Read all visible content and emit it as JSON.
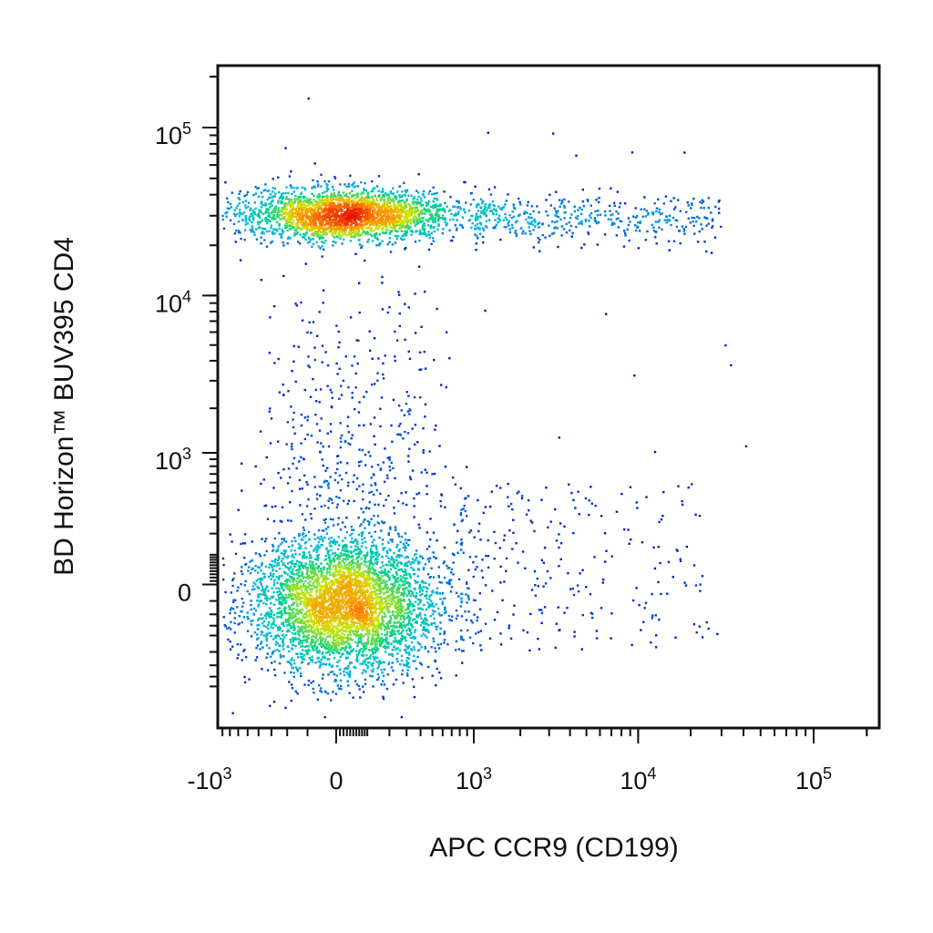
{
  "chart_data": {
    "type": "scatter",
    "title": "",
    "xlabel": "APC CCR9 (CD199)",
    "ylabel": "BD Horizon™ BUV395 CD4",
    "x_scale": "biexponential",
    "y_scale": "biexponential",
    "xlim": [
      -1800,
      150000
    ],
    "ylim": [
      -700,
      230000
    ],
    "grid": false,
    "legend": "none",
    "x_ticks": [
      {
        "value": -1000,
        "base": "-10",
        "exp": "3"
      },
      {
        "value": 0,
        "base": "0",
        "exp": ""
      },
      {
        "value": 1000,
        "base": "10",
        "exp": "3"
      },
      {
        "value": 10000,
        "base": "10",
        "exp": "4"
      },
      {
        "value": 100000,
        "base": "10",
        "exp": "5"
      }
    ],
    "y_ticks": [
      {
        "value": 100000,
        "base": "10",
        "exp": "5"
      },
      {
        "value": 10000,
        "base": "10",
        "exp": "4"
      },
      {
        "value": 1000,
        "base": "10",
        "exp": "3"
      },
      {
        "value": 0,
        "base": "0",
        "exp": ""
      }
    ],
    "density_colormap": [
      "#0000c8",
      "#00b4e6",
      "#00d28c",
      "#d2e600",
      "#ff8c00",
      "#e61400"
    ],
    "populations": [
      {
        "description": "CD4+ CCR9- cluster",
        "x_center": 50,
        "y_center": 32000,
        "count": 2600
      },
      {
        "description": "CD4- CCR9- cluster",
        "x_center": 20,
        "y_center": 60,
        "count": 4200
      },
      {
        "description": "CD4+ CCR9+ tail",
        "x_range": [
          1000,
          30000
        ],
        "y_center": 30000,
        "count": 420
      },
      {
        "description": "CD4 intermediate",
        "x_range": [
          -600,
          900
        ],
        "y_range": [
          1000,
          20000
        ],
        "count": 380
      },
      {
        "description": "CD4- CCR9+ scattered",
        "x_range": [
          800,
          25000
        ],
        "y_range": [
          -300,
          600
        ],
        "count": 260
      }
    ]
  }
}
